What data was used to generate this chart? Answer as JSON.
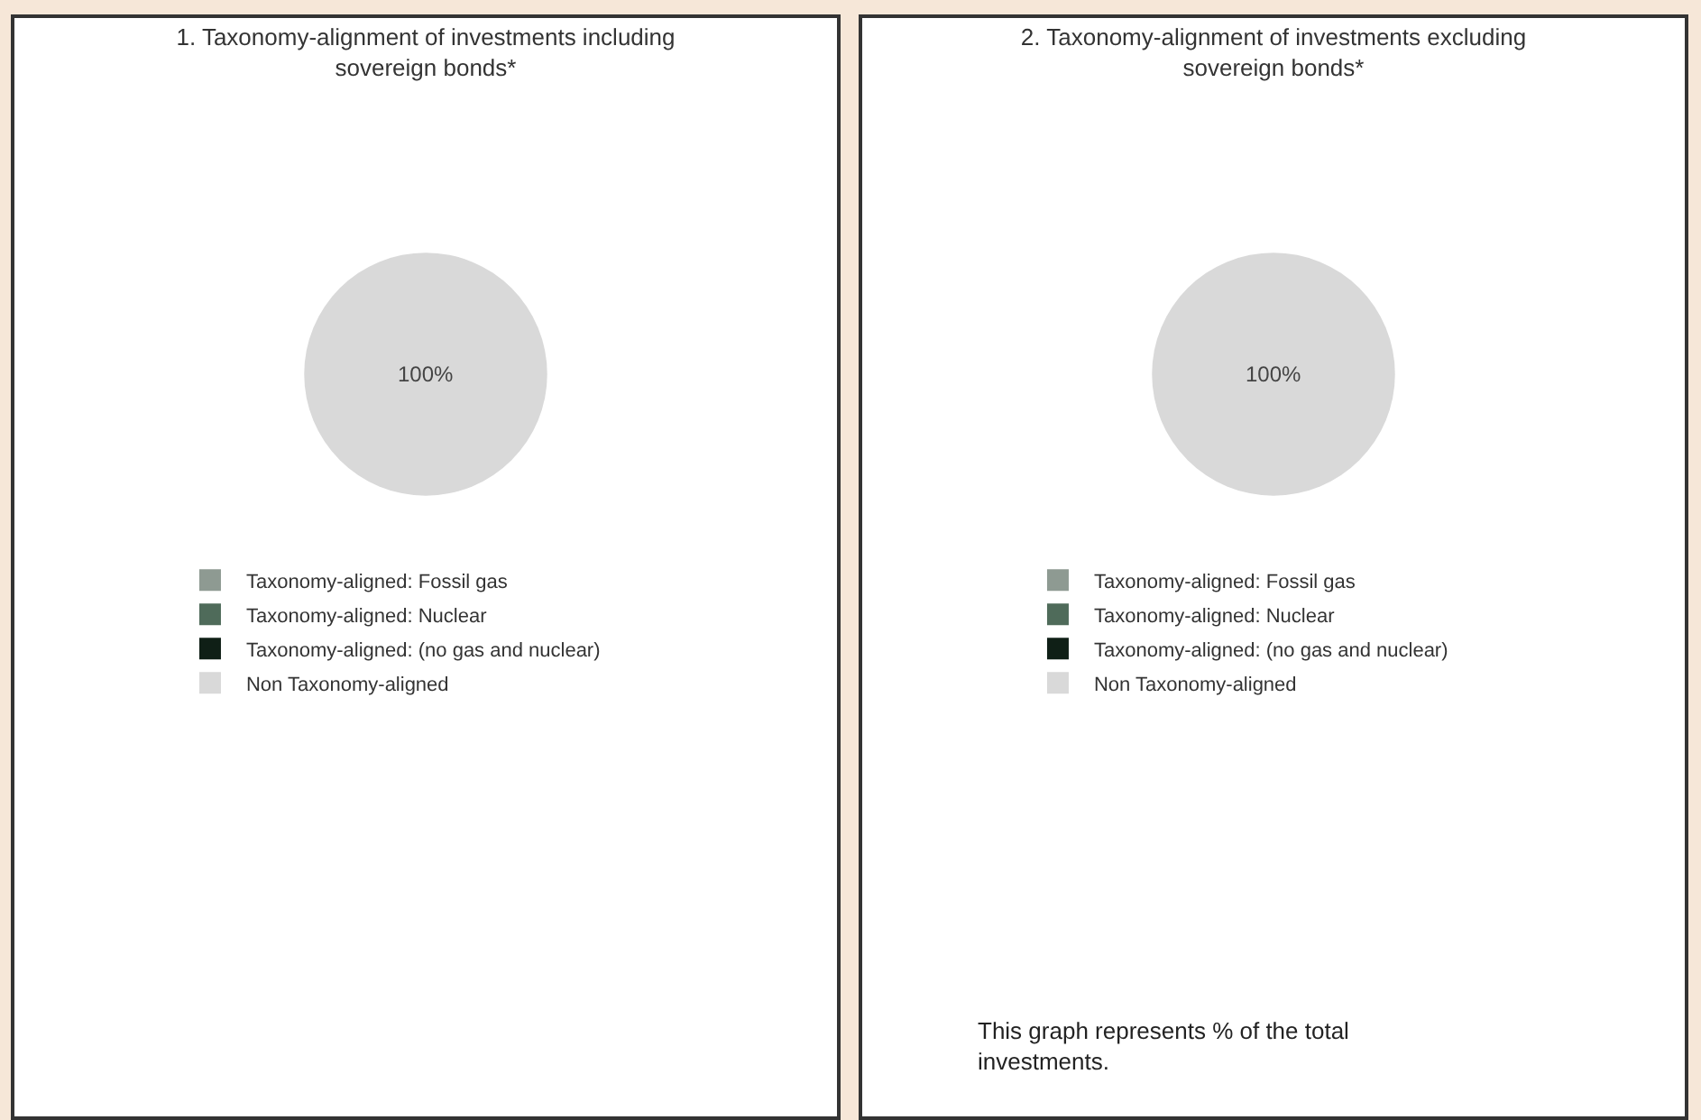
{
  "chart_data": [
    {
      "type": "pie",
      "title": "1. Taxonomy-alignment of investments including sovereign bonds*",
      "categories": [
        "Taxonomy-aligned: Fossil gas",
        "Taxonomy-aligned: Nuclear",
        "Taxonomy-aligned: (no gas and nuclear)",
        "Non Taxonomy-aligned"
      ],
      "values": [
        0,
        0,
        0,
        100
      ],
      "value_labels": [
        null,
        null,
        null,
        "100%"
      ],
      "colors": [
        "#8e9a92",
        "#4f6b5a",
        "#0f1f16",
        "#d9d9d9"
      ],
      "legend": "bottom"
    },
    {
      "type": "pie",
      "title": "2. Taxonomy-alignment of investments excluding sovereign bonds*",
      "categories": [
        "Taxonomy-aligned: Fossil gas",
        "Taxonomy-aligned: Nuclear",
        "Taxonomy-aligned: (no gas and nuclear)",
        "Non Taxonomy-aligned"
      ],
      "values": [
        0,
        0,
        0,
        100
      ],
      "value_labels": [
        null,
        null,
        null,
        "100%"
      ],
      "colors": [
        "#8e9a92",
        "#4f6b5a",
        "#0f1f16",
        "#d9d9d9"
      ],
      "legend": "bottom",
      "annotations": [
        "This graph represents % of the total investments."
      ]
    }
  ]
}
